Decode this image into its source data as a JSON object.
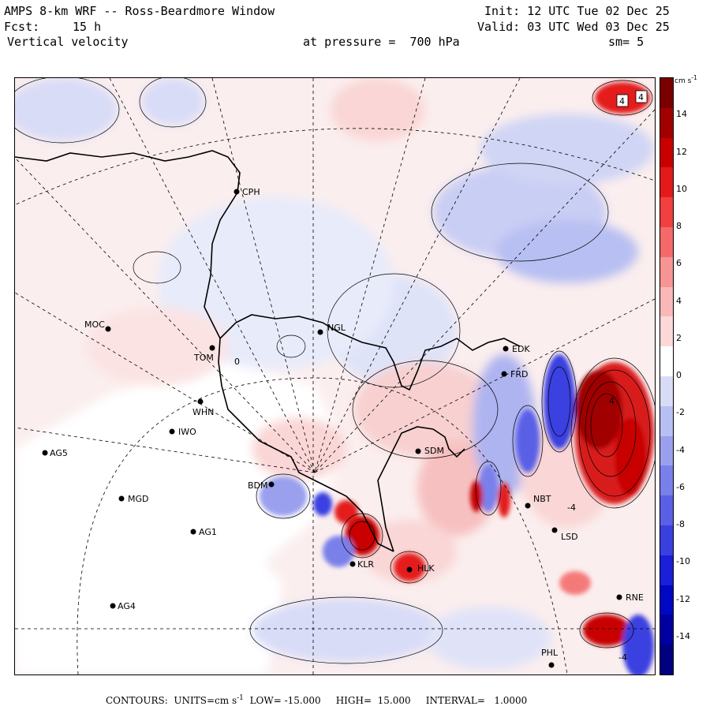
{
  "header": {
    "title_left": "AMPS 8-km WRF -- Ross-Beardmore Window",
    "fcst_label": "Fcst:",
    "fcst_value": "15 h",
    "field": "Vertical velocity",
    "init": "Init: 12 UTC Tue 02 Dec 25",
    "valid": "Valid: 03 UTC Wed 03 Dec 25",
    "pressure": "at pressure =  700 hPa",
    "smoothing": "sm= 5"
  },
  "colorbar": {
    "units": "cm s",
    "units_exp": "-1",
    "ticks": [
      "14",
      "12",
      "10",
      "8",
      "6",
      "4",
      "2",
      "0",
      "-2",
      "-4",
      "-6",
      "-8",
      "-10",
      "-12",
      "-14"
    ],
    "tick_values": [
      14,
      12,
      10,
      8,
      6,
      4,
      2,
      0,
      -2,
      -4,
      -6,
      -8,
      -10,
      -12,
      -14
    ],
    "range": [
      -16,
      16
    ],
    "colors": [
      "#7a0000",
      "#a00000",
      "#c80000",
      "#e41a1a",
      "#f04040",
      "#f46a6a",
      "#f79494",
      "#fab8b8",
      "#fcd8d8",
      "#ffffff",
      "#d8dcf7",
      "#b8bff2",
      "#9aa0ee",
      "#7a80ea",
      "#5a60e6",
      "#3a40e0",
      "#1a20d8",
      "#0008c4",
      "#0000a0",
      "#000080"
    ]
  },
  "stations": [
    {
      "id": "CPH",
      "label": "CPH"
    },
    {
      "id": "MOC",
      "label": "MOC"
    },
    {
      "id": "NGL",
      "label": "NGL"
    },
    {
      "id": "TOM",
      "label": "TOM"
    },
    {
      "id": "WHN",
      "label": "WHN"
    },
    {
      "id": "IWO",
      "label": "IWO"
    },
    {
      "id": "AG5",
      "label": "AG5"
    },
    {
      "id": "MGD",
      "label": "MGD"
    },
    {
      "id": "AG1",
      "label": "AG1"
    },
    {
      "id": "AG4",
      "label": "AG4"
    },
    {
      "id": "BDM",
      "label": "BDM"
    },
    {
      "id": "SDM",
      "label": "SDM"
    },
    {
      "id": "EDK",
      "label": "EDK"
    },
    {
      "id": "FRD",
      "label": "FRD"
    },
    {
      "id": "NBT",
      "label": "NBT"
    },
    {
      "id": "LSD",
      "label": "LSD"
    },
    {
      "id": "KLR",
      "label": "KLR"
    },
    {
      "id": "HLK",
      "label": "HLK"
    },
    {
      "id": "RNE",
      "label": "RNE"
    },
    {
      "id": "PHL",
      "label": "PHL"
    }
  ],
  "contour_labels": [
    "4",
    "4",
    "0",
    "-4",
    "4",
    "-4"
  ],
  "footer": {
    "contours_label": "CONTOURS:",
    "units_label": "UNITS=cm s",
    "units_exp": "-1",
    "low": "LOW= -15.000",
    "high": "HIGH=  15.000",
    "interval": "INTERVAL=   1.0000"
  }
}
